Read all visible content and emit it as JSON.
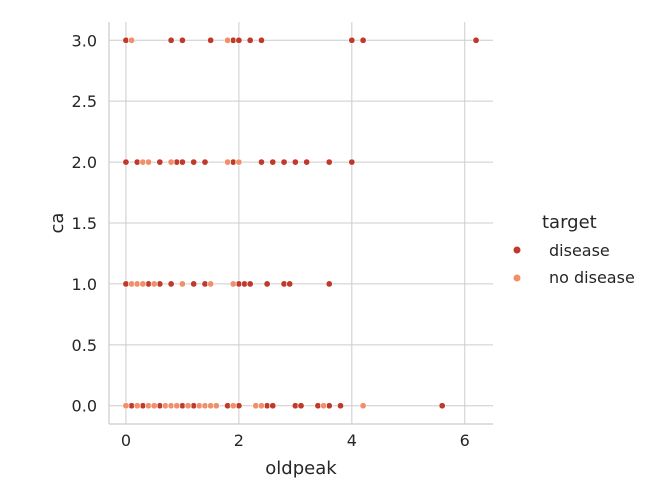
{
  "chart_data": {
    "type": "scatter",
    "xlabel": "oldpeak",
    "ylabel": "ca",
    "xlim": [
      -0.3,
      6.5
    ],
    "ylim": [
      -0.15,
      3.15
    ],
    "xticks": [
      0,
      2,
      4,
      6
    ],
    "yticks": [
      0.0,
      0.5,
      1.0,
      1.5,
      2.0,
      2.5,
      3.0
    ],
    "xtick_labels": [
      "0",
      "2",
      "4",
      "6"
    ],
    "ytick_labels": [
      "0.0",
      "0.5",
      "1.0",
      "1.5",
      "2.0",
      "2.5",
      "3.0"
    ],
    "grid": true,
    "legend": {
      "title": "target",
      "placement": "right"
    },
    "series": [
      {
        "name": "disease",
        "color": "#c0392b",
        "points": [
          [
            0.0,
            3.0
          ],
          [
            0.8,
            3.0
          ],
          [
            1.0,
            3.0
          ],
          [
            1.5,
            3.0
          ],
          [
            1.9,
            3.0
          ],
          [
            2.0,
            3.0
          ],
          [
            2.2,
            3.0
          ],
          [
            2.4,
            3.0
          ],
          [
            4.0,
            3.0
          ],
          [
            4.2,
            3.0
          ],
          [
            6.2,
            3.0
          ],
          [
            0.0,
            2.0
          ],
          [
            0.2,
            2.0
          ],
          [
            0.6,
            2.0
          ],
          [
            0.9,
            2.0
          ],
          [
            1.0,
            2.0
          ],
          [
            1.2,
            2.0
          ],
          [
            1.4,
            2.0
          ],
          [
            1.9,
            2.0
          ],
          [
            2.4,
            2.0
          ],
          [
            2.6,
            2.0
          ],
          [
            2.8,
            2.0
          ],
          [
            3.0,
            2.0
          ],
          [
            3.2,
            2.0
          ],
          [
            3.6,
            2.0
          ],
          [
            4.0,
            2.0
          ],
          [
            0.0,
            1.0
          ],
          [
            0.4,
            1.0
          ],
          [
            0.6,
            1.0
          ],
          [
            0.8,
            1.0
          ],
          [
            1.2,
            1.0
          ],
          [
            1.4,
            1.0
          ],
          [
            2.0,
            1.0
          ],
          [
            2.1,
            1.0
          ],
          [
            2.2,
            1.0
          ],
          [
            2.5,
            1.0
          ],
          [
            2.8,
            1.0
          ],
          [
            2.9,
            1.0
          ],
          [
            3.6,
            1.0
          ],
          [
            0.1,
            0.0
          ],
          [
            0.3,
            0.0
          ],
          [
            0.6,
            0.0
          ],
          [
            1.0,
            0.0
          ],
          [
            1.2,
            0.0
          ],
          [
            1.8,
            0.0
          ],
          [
            2.0,
            0.0
          ],
          [
            2.5,
            0.0
          ],
          [
            2.6,
            0.0
          ],
          [
            3.0,
            0.0
          ],
          [
            3.1,
            0.0
          ],
          [
            3.4,
            0.0
          ],
          [
            3.6,
            0.0
          ],
          [
            3.8,
            0.0
          ],
          [
            5.6,
            0.0
          ]
        ]
      },
      {
        "name": "no disease",
        "color": "#f0906a",
        "points": [
          [
            0.1,
            3.0
          ],
          [
            1.8,
            3.0
          ],
          [
            0.3,
            2.0
          ],
          [
            0.4,
            2.0
          ],
          [
            0.8,
            2.0
          ],
          [
            1.8,
            2.0
          ],
          [
            2.0,
            2.0
          ],
          [
            0.1,
            1.0
          ],
          [
            0.2,
            1.0
          ],
          [
            0.3,
            1.0
          ],
          [
            0.5,
            1.0
          ],
          [
            1.0,
            1.0
          ],
          [
            1.5,
            1.0
          ],
          [
            1.9,
            1.0
          ],
          [
            0.0,
            0.0
          ],
          [
            0.2,
            0.0
          ],
          [
            0.4,
            0.0
          ],
          [
            0.5,
            0.0
          ],
          [
            0.7,
            0.0
          ],
          [
            0.8,
            0.0
          ],
          [
            0.9,
            0.0
          ],
          [
            1.1,
            0.0
          ],
          [
            1.3,
            0.0
          ],
          [
            1.4,
            0.0
          ],
          [
            1.5,
            0.0
          ],
          [
            1.6,
            0.0
          ],
          [
            1.9,
            0.0
          ],
          [
            2.3,
            0.0
          ],
          [
            2.4,
            0.0
          ],
          [
            3.5,
            0.0
          ],
          [
            4.2,
            0.0
          ]
        ]
      }
    ]
  }
}
